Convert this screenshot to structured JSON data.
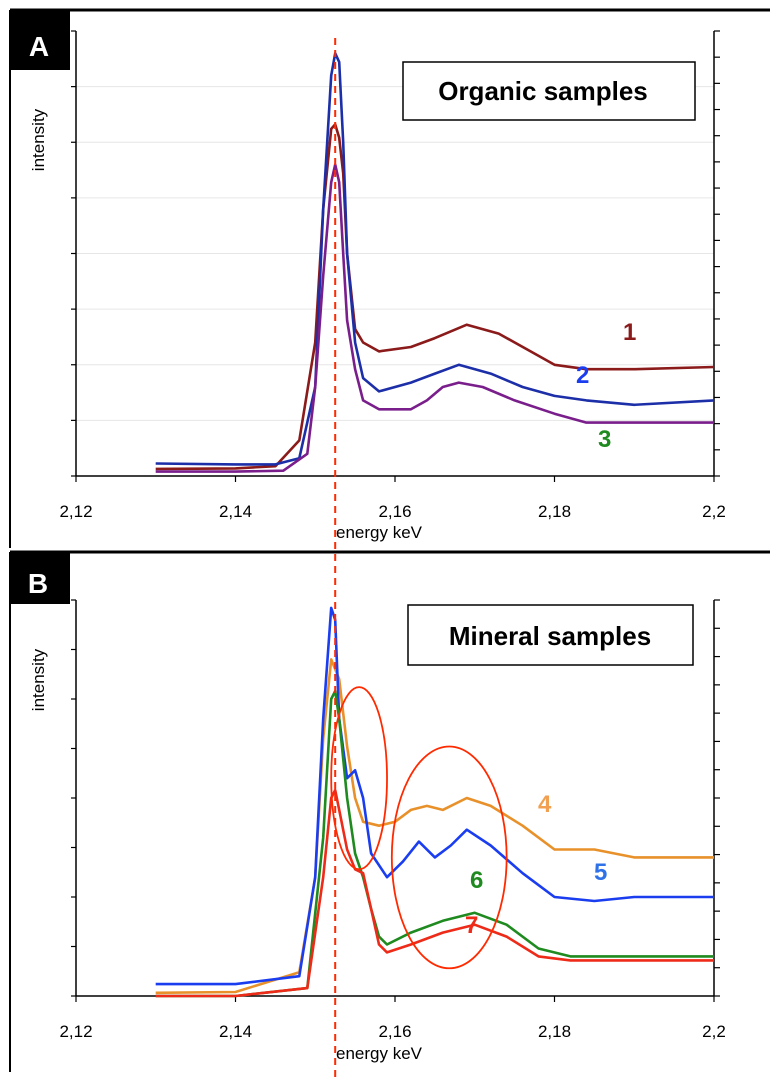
{
  "colors": {
    "frame": "#000000",
    "axis": "#000000",
    "reference_line": "#ff2a00",
    "gridline": "#e6e6e6",
    "circle": "#ff2a00"
  },
  "reference_energy": 2.1525,
  "chart_data": [
    {
      "panel": "A",
      "type": "line",
      "title": "Organic samples",
      "xlabel": "energy keV",
      "ylabel": "intensity",
      "xlim": [
        2.12,
        2.2
      ],
      "ylim": [
        0,
        1
      ],
      "xticks": [
        "2,12",
        "2,14",
        "2,16",
        "2,18",
        "2,2"
      ],
      "grid": true,
      "legend": "curve numbers placed near line ends",
      "series": [
        {
          "label": "1",
          "color": "#8b1a1a",
          "label_color": "#8b1a1a",
          "x": [
            2.13,
            2.14,
            2.145,
            2.148,
            2.15,
            2.151,
            2.152,
            2.1525,
            2.153,
            2.1535,
            2.154,
            2.155,
            2.156,
            2.158,
            2.162,
            2.165,
            2.169,
            2.173,
            2.177,
            2.18,
            2.184,
            2.19,
            2.2
          ],
          "y": [
            0.016,
            0.017,
            0.022,
            0.08,
            0.3,
            0.6,
            0.78,
            0.79,
            0.76,
            0.68,
            0.5,
            0.33,
            0.3,
            0.28,
            0.29,
            0.31,
            0.34,
            0.32,
            0.28,
            0.25,
            0.24,
            0.24,
            0.245
          ]
        },
        {
          "label": "2",
          "color": "#1c2fa8",
          "label_color": "#1a3df0",
          "x": [
            2.13,
            2.14,
            2.145,
            2.148,
            2.15,
            2.151,
            2.152,
            2.1525,
            2.153,
            2.1535,
            2.154,
            2.155,
            2.156,
            2.158,
            2.162,
            2.165,
            2.168,
            2.172,
            2.176,
            2.18,
            2.184,
            2.19,
            2.2
          ],
          "y": [
            0.028,
            0.026,
            0.026,
            0.04,
            0.2,
            0.6,
            0.9,
            0.95,
            0.93,
            0.75,
            0.5,
            0.3,
            0.22,
            0.19,
            0.21,
            0.23,
            0.25,
            0.23,
            0.2,
            0.18,
            0.17,
            0.16,
            0.17
          ]
        },
        {
          "label": "3",
          "color": "#7a1e8c",
          "label_color": "#1f8a1f",
          "x": [
            2.13,
            2.14,
            2.146,
            2.149,
            2.15,
            2.151,
            2.152,
            2.1525,
            2.153,
            2.1535,
            2.154,
            2.155,
            2.156,
            2.158,
            2.162,
            2.164,
            2.166,
            2.168,
            2.171,
            2.175,
            2.18,
            2.184,
            2.19,
            2.2
          ],
          "y": [
            0.01,
            0.01,
            0.012,
            0.05,
            0.2,
            0.45,
            0.66,
            0.7,
            0.66,
            0.5,
            0.35,
            0.24,
            0.17,
            0.15,
            0.15,
            0.17,
            0.2,
            0.21,
            0.2,
            0.17,
            0.14,
            0.12,
            0.12,
            0.12
          ]
        }
      ]
    },
    {
      "panel": "B",
      "type": "line",
      "title": "Mineral samples",
      "xlabel": "energy keV",
      "ylabel": "intensity",
      "xlim": [
        2.12,
        2.2
      ],
      "ylim": [
        0,
        1
      ],
      "xticks": [
        "2,12",
        "2,14",
        "2,16",
        "2,18",
        "2,2"
      ],
      "grid": false,
      "legend": "curve numbers placed near line ends",
      "series": [
        {
          "label": "4",
          "color": "#e8912a",
          "label_color": "#f0a050",
          "x": [
            2.13,
            2.14,
            2.148,
            2.15,
            2.151,
            2.152,
            2.153,
            2.154,
            2.155,
            2.156,
            2.158,
            2.16,
            2.162,
            2.164,
            2.166,
            2.169,
            2.172,
            2.176,
            2.18,
            2.185,
            2.19,
            2.2
          ],
          "y": [
            0.008,
            0.01,
            0.06,
            0.3,
            0.65,
            0.85,
            0.8,
            0.63,
            0.5,
            0.44,
            0.43,
            0.44,
            0.47,
            0.48,
            0.47,
            0.5,
            0.48,
            0.43,
            0.37,
            0.37,
            0.35,
            0.35
          ]
        },
        {
          "label": "5",
          "color": "#1a3df0",
          "label_color": "#2f72e8",
          "x": [
            2.13,
            2.14,
            2.148,
            2.15,
            2.151,
            2.152,
            2.1525,
            2.153,
            2.154,
            2.155,
            2.156,
            2.157,
            2.159,
            2.161,
            2.163,
            2.165,
            2.167,
            2.169,
            2.172,
            2.176,
            2.18,
            2.185,
            2.19,
            2.2
          ],
          "y": [
            0.03,
            0.03,
            0.05,
            0.3,
            0.7,
            0.98,
            0.95,
            0.7,
            0.55,
            0.57,
            0.5,
            0.36,
            0.3,
            0.34,
            0.39,
            0.35,
            0.38,
            0.42,
            0.38,
            0.31,
            0.25,
            0.24,
            0.25,
            0.25
          ]
        },
        {
          "label": "6",
          "color": "#1f8a1f",
          "label_color": "#1f8a1f",
          "x": [
            2.13,
            2.14,
            2.149,
            2.151,
            2.152,
            2.1525,
            2.153,
            2.154,
            2.155,
            2.156,
            2.157,
            2.158,
            2.159,
            2.162,
            2.166,
            2.17,
            2.174,
            2.178,
            2.182,
            2.19,
            2.2
          ],
          "y": [
            0.0,
            0.0,
            0.02,
            0.4,
            0.75,
            0.77,
            0.7,
            0.5,
            0.36,
            0.3,
            0.22,
            0.15,
            0.13,
            0.16,
            0.19,
            0.21,
            0.18,
            0.12,
            0.1,
            0.1,
            0.1
          ]
        },
        {
          "label": "7",
          "color": "#ee2a18",
          "label_color": "#ee2a18",
          "x": [
            2.13,
            2.14,
            2.149,
            2.151,
            2.152,
            2.1525,
            2.153,
            2.154,
            2.155,
            2.156,
            2.157,
            2.158,
            2.159,
            2.162,
            2.166,
            2.17,
            2.174,
            2.178,
            2.182,
            2.19,
            2.2
          ],
          "y": [
            0.0,
            0.0,
            0.02,
            0.3,
            0.5,
            0.52,
            0.47,
            0.37,
            0.32,
            0.31,
            0.22,
            0.13,
            0.11,
            0.13,
            0.16,
            0.18,
            0.15,
            0.1,
            0.09,
            0.09,
            0.09
          ]
        }
      ],
      "annotations": [
        {
          "shape": "ellipse",
          "center": [
            2.1555,
            0.55
          ],
          "rx": 0.0035,
          "ry": 0.23
        },
        {
          "shape": "ellipse",
          "center": [
            2.1668,
            0.35
          ],
          "rx": 0.0072,
          "ry": 0.28
        }
      ]
    }
  ]
}
